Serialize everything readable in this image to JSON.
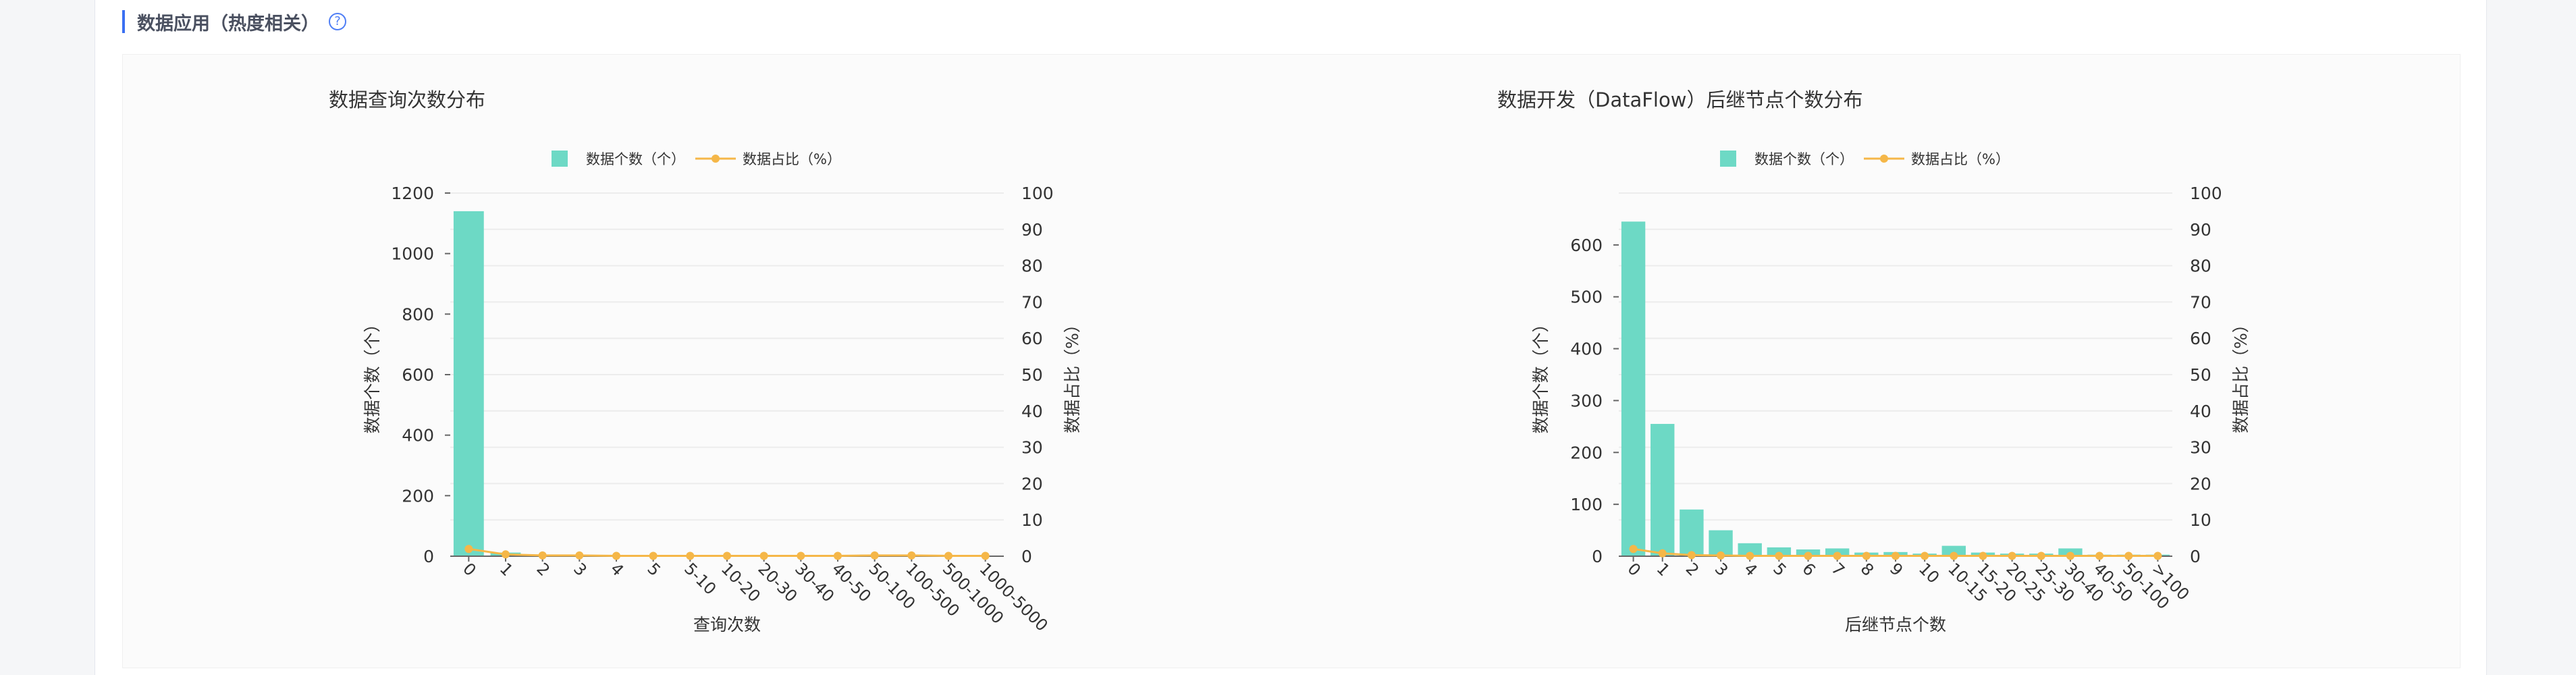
{
  "section": {
    "title": "数据应用（热度相关）",
    "help_icon": "question-circle-icon"
  },
  "colors": {
    "bar": "#6dd9c5",
    "line": "#f5b748",
    "grid": "#ececec",
    "axis": "#666666"
  },
  "chart_data": [
    {
      "type": "bar",
      "title": "数据查询次数分布",
      "xlabel": "查询次数",
      "ylabel": "数据个数（个）",
      "y2label": "数据占比（%）",
      "legend": [
        "数据个数（个）",
        "数据占比（%）"
      ],
      "ylim": [
        0,
        1200
      ],
      "yticks": [
        0,
        200,
        400,
        600,
        800,
        1000,
        1200
      ],
      "y2lim": [
        0,
        100
      ],
      "y2ticks": [
        0,
        10,
        20,
        30,
        40,
        50,
        60,
        70,
        80,
        90,
        100
      ],
      "categories": [
        "0",
        "1",
        "2",
        "3",
        "4",
        "5",
        "5-10",
        "10-20",
        "20-30",
        "30-40",
        "40-50",
        "50-100",
        "100-500",
        "500-1000",
        "1000-5000"
      ],
      "series": [
        {
          "name": "数据个数（个）",
          "type": "bar",
          "axis": "left",
          "values": [
            1140,
            12,
            4,
            4,
            2,
            2,
            3,
            3,
            2,
            2,
            2,
            5,
            4,
            3,
            2
          ]
        },
        {
          "name": "数据占比（%）",
          "type": "line",
          "axis": "right",
          "values": [
            2,
            0.5,
            0.2,
            0.2,
            0.1,
            0.1,
            0.1,
            0.1,
            0.1,
            0.1,
            0.1,
            0.2,
            0.2,
            0.1,
            0.1
          ]
        }
      ]
    },
    {
      "type": "bar",
      "title": "数据开发（DataFlow）后继节点个数分布",
      "xlabel": "后继节点个数",
      "ylabel": "数据个数（个）",
      "y2label": "数据占比（%）",
      "legend": [
        "数据个数（个）",
        "数据占比（%）"
      ],
      "ylim": [
        0,
        700
      ],
      "yticks": [
        0,
        100,
        200,
        300,
        400,
        500,
        600
      ],
      "y2lim": [
        0,
        100
      ],
      "y2ticks": [
        0,
        10,
        20,
        30,
        40,
        50,
        60,
        70,
        80,
        90,
        100
      ],
      "categories": [
        "0",
        "1",
        "2",
        "3",
        "4",
        "5",
        "6",
        "7",
        "8",
        "9",
        "10",
        "10-15",
        "15-20",
        "20-25",
        "25-30",
        "30-40",
        "40-50",
        "50-100",
        ">100"
      ],
      "series": [
        {
          "name": "数据个数（个）",
          "type": "bar",
          "axis": "left",
          "values": [
            645,
            255,
            90,
            50,
            25,
            17,
            13,
            15,
            7,
            8,
            5,
            20,
            7,
            5,
            5,
            15,
            3,
            3,
            3
          ]
        },
        {
          "name": "数据占比（%）",
          "type": "line",
          "axis": "right",
          "values": [
            2,
            0.8,
            0.3,
            0.2,
            0.1,
            0.1,
            0.1,
            0.1,
            0.1,
            0.1,
            0.1,
            0.1,
            0.1,
            0.1,
            0.1,
            0.1,
            0.1,
            0.1,
            0.1
          ]
        }
      ]
    }
  ]
}
